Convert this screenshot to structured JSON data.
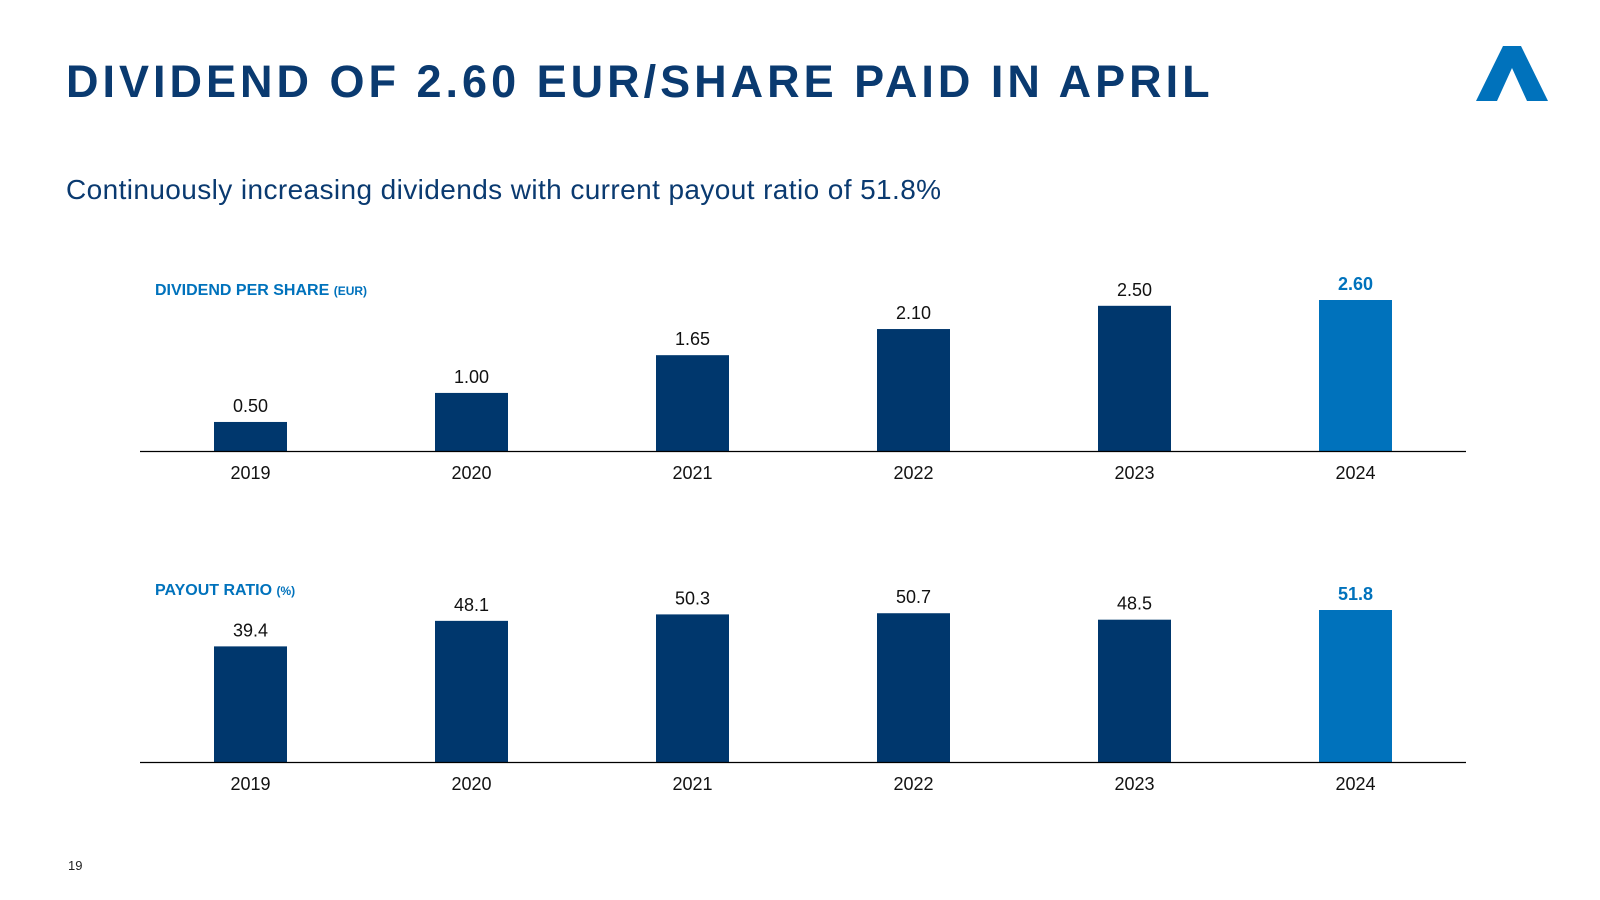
{
  "slide": {
    "title": "DIVIDEND OF 2.60 EUR/SHARE PAID IN APRIL",
    "subtitle": "Continuously increasing dividends with current payout ratio of 51.8%",
    "page_number": "19",
    "logo_icon": "triangle-a-logo-icon"
  },
  "colors": {
    "title": "#0a3a70",
    "bar": "#00376d",
    "highlight": "#0072bc",
    "axis": "#000000"
  },
  "chart_data": [
    {
      "type": "bar",
      "title": "DIVIDEND PER SHARE",
      "title_unit": "(EUR)",
      "categories": [
        "2019",
        "2020",
        "2021",
        "2022",
        "2023",
        "2024"
      ],
      "values": [
        0.5,
        1.0,
        1.65,
        2.1,
        2.5,
        2.6
      ],
      "labels": [
        "0.50",
        "1.00",
        "1.65",
        "2.10",
        "2.50",
        "2.60"
      ],
      "highlight_index": 5,
      "ylim": [
        0,
        2.6
      ],
      "grid": false
    },
    {
      "type": "bar",
      "title": "PAYOUT RATIO",
      "title_unit": "(%)",
      "categories": [
        "2019",
        "2020",
        "2021",
        "2022",
        "2023",
        "2024"
      ],
      "values": [
        39.4,
        48.1,
        50.3,
        50.7,
        48.5,
        51.8
      ],
      "labels": [
        "39.4",
        "48.1",
        "50.3",
        "50.7",
        "48.5",
        "51.8"
      ],
      "highlight_index": 5,
      "ylim": [
        0,
        51.8
      ],
      "grid": false
    }
  ]
}
